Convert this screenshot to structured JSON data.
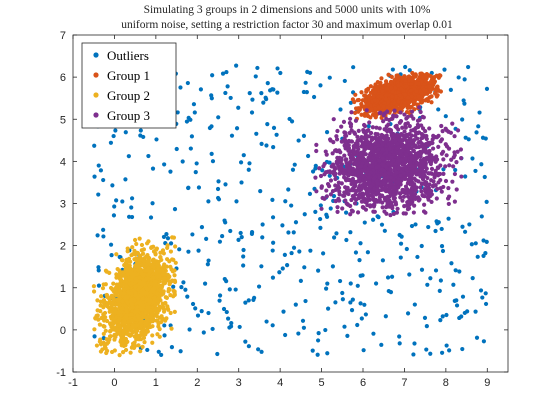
{
  "chart_data": {
    "type": "scatter",
    "title": [
      "Simulating 3 groups in 2 dimensions and 5000 units with 10%",
      "uniform noise, setting a restriction factor 30 and maximum overlap 0.01"
    ],
    "xlabel": "",
    "ylabel": "",
    "xlim": [
      -1,
      9.5
    ],
    "ylim": [
      -1,
      7
    ],
    "xticks": [
      -1,
      0,
      1,
      2,
      3,
      4,
      5,
      6,
      7,
      8,
      9
    ],
    "yticks": [
      -1,
      0,
      1,
      2,
      3,
      4,
      5,
      6,
      7
    ],
    "grid": false,
    "legend_position": "top-left",
    "series": [
      {
        "name": "Outliers",
        "color": "#0072BD",
        "distribution": "uniform",
        "x_range": [
          -0.5,
          9
        ],
        "y_range": [
          -0.6,
          6.3
        ],
        "count": 500
      },
      {
        "name": "Group 1",
        "color": "#D95319",
        "distribution": "elliptical cluster",
        "center": [
          6.9,
          5.6
        ],
        "x_range": [
          5.7,
          7.9
        ],
        "y_range": [
          5.0,
          6.1
        ],
        "count": 1300
      },
      {
        "name": "Group 2",
        "color": "#EDB120",
        "distribution": "elliptical cluster",
        "center": [
          0.55,
          0.75
        ],
        "x_range": [
          -0.5,
          1.5
        ],
        "y_range": [
          -0.6,
          2.2
        ],
        "count": 1600
      },
      {
        "name": "Group 3",
        "color": "#7E2F8E",
        "distribution": "elliptical cluster",
        "center": [
          6.6,
          3.9
        ],
        "x_range": [
          4.8,
          8.4
        ],
        "y_range": [
          2.7,
          5.3
        ],
        "count": 1600
      }
    ]
  }
}
